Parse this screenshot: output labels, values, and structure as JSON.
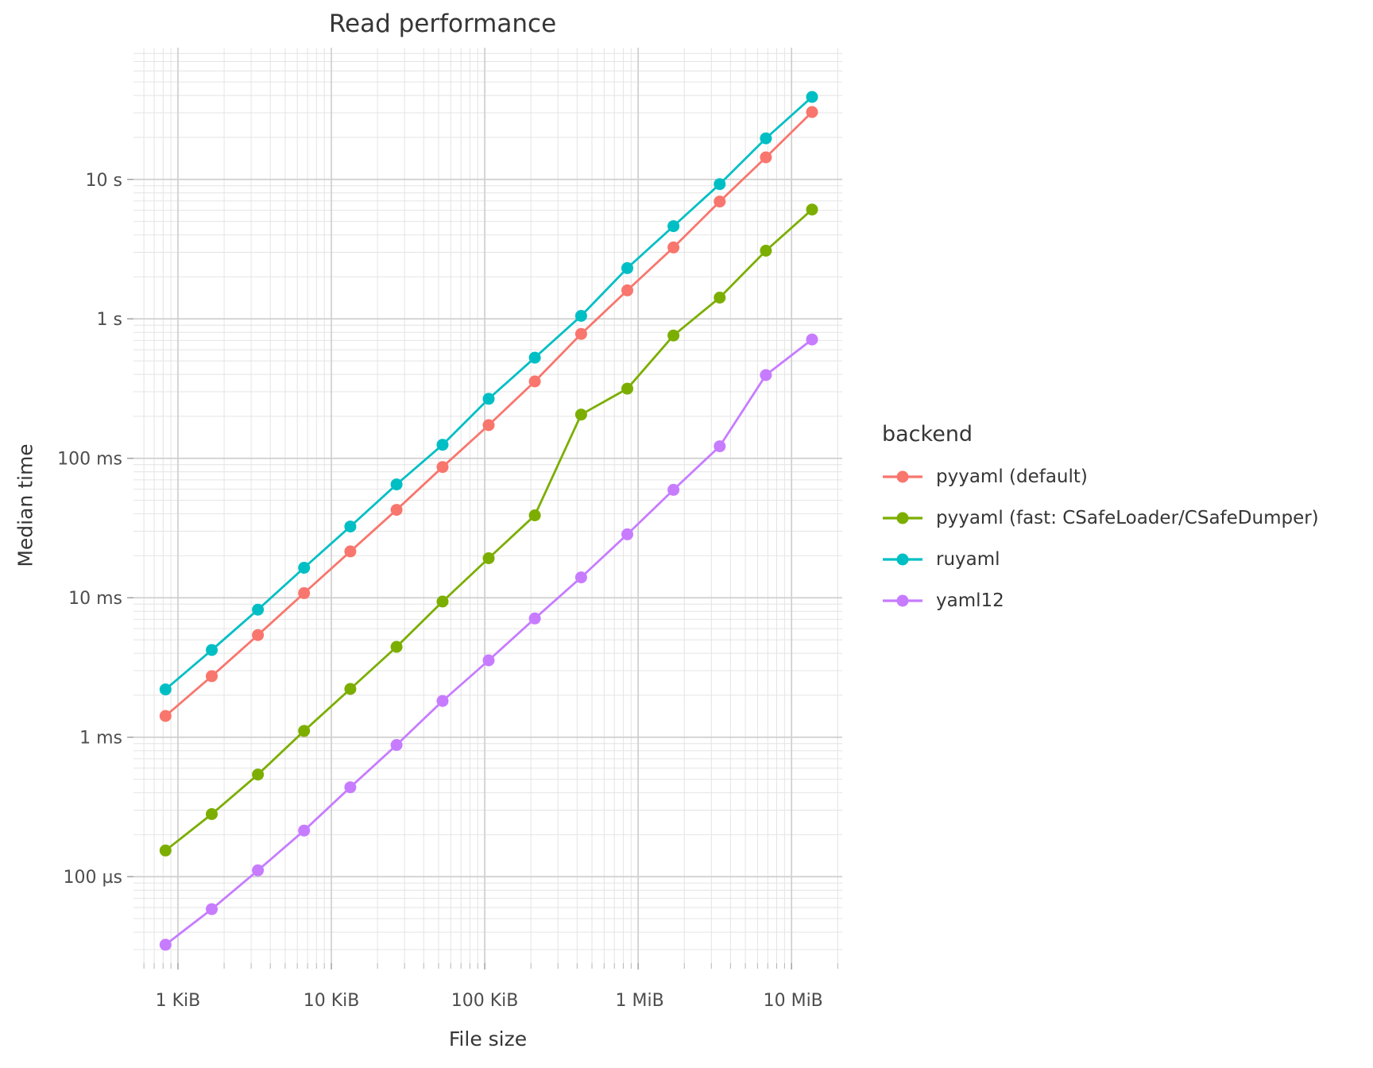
{
  "chart": {
    "title": "Read performance",
    "xlabel": "File size",
    "ylabel": "Median time",
    "legend_title": "backend"
  },
  "chart_data": {
    "type": "line",
    "title": "Read performance",
    "xlabel": "File size",
    "ylabel": "Median time",
    "legend_title": "backend",
    "legend_position": "right",
    "grid": {
      "major": true,
      "minor": true,
      "log_minor_mantissas": [
        2,
        3,
        4,
        5,
        6,
        7,
        8,
        9
      ]
    },
    "x_axis": {
      "scale": "log10",
      "unit": "KiB",
      "domain_kib": [
        0.513,
        21400
      ],
      "ticks": [
        {
          "kib": 1,
          "label": "1 KiB"
        },
        {
          "kib": 10,
          "label": "10 KiB"
        },
        {
          "kib": 100,
          "label": "100 KiB"
        },
        {
          "kib": 1024,
          "label": "1 MiB"
        },
        {
          "kib": 10240,
          "label": "10 MiB"
        }
      ]
    },
    "y_axis": {
      "scale": "log10",
      "unit": "seconds",
      "domain_s": [
        2.4e-05,
        88
      ],
      "ticks": [
        {
          "s": 10,
          "label": "10 s"
        },
        {
          "s": 1,
          "label": "1 s"
        },
        {
          "s": 0.1,
          "label": "100 ms"
        },
        {
          "s": 0.01,
          "label": "10 ms"
        },
        {
          "s": 0.001,
          "label": "1 ms"
        },
        {
          "s": 0.0001,
          "label": "100 µs"
        }
      ]
    },
    "file_size_kib": [
      0.83,
      1.66,
      3.32,
      6.64,
      13.3,
      26.6,
      53.1,
      106,
      212,
      425,
      850,
      1700,
      3400,
      6800,
      13600
    ],
    "series": [
      {
        "name": "pyyaml (default)",
        "color": "#F8766D",
        "median_time_ms": [
          1.42,
          2.74,
          5.4,
          10.8,
          21.5,
          42.7,
          86.6,
          173,
          356,
          780,
          1600,
          3250,
          6940,
          14400,
          30400
        ]
      },
      {
        "name": "pyyaml (fast: CSafeLoader/CSafeDumper)",
        "color": "#7CAE00",
        "median_time_ms": [
          0.154,
          0.281,
          0.54,
          1.11,
          2.22,
          4.45,
          9.4,
          19.2,
          39,
          206,
          316,
          760,
          1420,
          3080,
          6080
        ]
      },
      {
        "name": "ruyaml",
        "color": "#00BFC4",
        "median_time_ms": [
          2.2,
          4.22,
          8.22,
          16.4,
          32.4,
          65,
          125,
          267,
          527,
          1050,
          2310,
          4620,
          9250,
          19700,
          39000
        ]
      },
      {
        "name": "yaml12",
        "color": "#C77CFF",
        "median_time_ms": [
          0.0325,
          0.0585,
          0.111,
          0.214,
          0.438,
          0.88,
          1.82,
          3.56,
          7.1,
          14,
          28.5,
          59.4,
          122,
          395,
          711
        ]
      }
    ]
  }
}
